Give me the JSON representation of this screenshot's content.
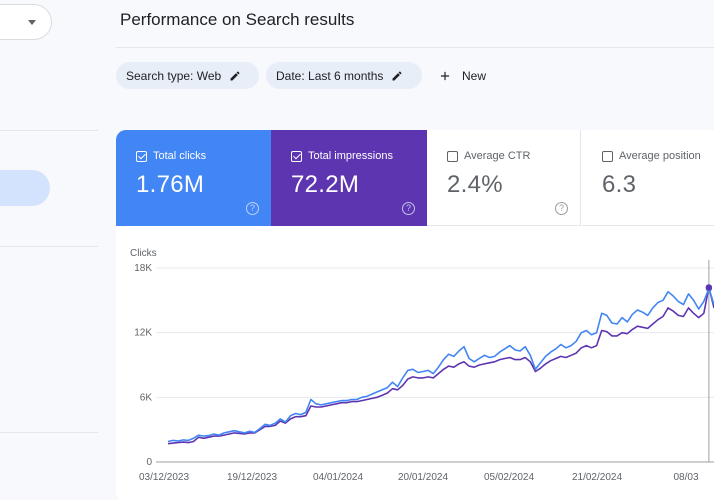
{
  "header": {
    "title": "Performance on Search results"
  },
  "filters": {
    "chips": [
      {
        "label": "Search type: Web"
      },
      {
        "label": "Date: Last 6 months"
      }
    ],
    "new_label": "New"
  },
  "metrics": [
    {
      "label": "Total clicks",
      "value": "1.76M",
      "checked": true,
      "color": "#4285f4"
    },
    {
      "label": "Total impressions",
      "value": "72.2M",
      "checked": true,
      "color": "#5e35b1"
    },
    {
      "label": "Average CTR",
      "value": "2.4%",
      "checked": false
    },
    {
      "label": "Average position",
      "value": "6.3",
      "checked": false
    }
  ],
  "icons": {
    "dropdown": "chevron-down-icon",
    "edit": "pencil-icon",
    "add": "plus-icon",
    "help": "help-circle-icon",
    "checkbox": "checkbox-icon"
  },
  "chart_data": {
    "type": "line",
    "ylabel": "Clicks",
    "ylim": [
      0,
      18000
    ],
    "yticks": [
      {
        "value": 0,
        "label": "0"
      },
      {
        "value": 6000,
        "label": "6K"
      },
      {
        "value": 12000,
        "label": "12K"
      },
      {
        "value": 18000,
        "label": "18K"
      }
    ],
    "xticks": [
      "03/12/2023",
      "19/12/2023",
      "04/01/2024",
      "20/01/2024",
      "05/02/2024",
      "21/02/2024",
      "08/03"
    ],
    "x_start": "2023-12-03",
    "series": [
      {
        "color": "#4285f4",
        "values": [
          1900,
          2000,
          1950,
          2050,
          2000,
          2200,
          2500,
          2400,
          2450,
          2600,
          2500,
          2700,
          2800,
          2900,
          2800,
          2700,
          2850,
          2750,
          3100,
          3500,
          3400,
          3600,
          4000,
          3700,
          4300,
          4500,
          4400,
          4600,
          5800,
          5400,
          5300,
          5400,
          5500,
          5600,
          5700,
          5700,
          5800,
          5800,
          6000,
          6100,
          6300,
          6500,
          6700,
          6900,
          7400,
          7000,
          7800,
          8500,
          8600,
          8300,
          8400,
          8500,
          8200,
          8800,
          9500,
          10000,
          9800,
          10300,
          10700,
          9600,
          9300,
          9600,
          9900,
          9700,
          9800,
          10200,
          10500,
          10800,
          10400,
          10300,
          10700,
          9900,
          8600,
          9200,
          9800,
          10200,
          10500,
          10900,
          10600,
          10800,
          11200,
          12000,
          12200,
          11800,
          12000,
          13800,
          13600,
          12900,
          12800,
          13400,
          13000,
          13700,
          14100,
          13900,
          13600,
          14300,
          14800,
          15000,
          15800,
          15400,
          14900,
          14600,
          15600,
          15000,
          14200,
          14900,
          16100,
          14600
        ],
        "name": ""
      },
      {
        "color": "#5e35b1",
        "values": [
          1700,
          1750,
          1800,
          1850,
          1800,
          1900,
          2300,
          2200,
          2300,
          2400,
          2400,
          2500,
          2600,
          2700,
          2650,
          2600,
          2700,
          2700,
          3000,
          3300,
          3300,
          3400,
          3800,
          3600,
          4000,
          4200,
          4200,
          4300,
          5200,
          5100,
          5100,
          5200,
          5300,
          5400,
          5500,
          5500,
          5600,
          5600,
          5700,
          5800,
          5900,
          6000,
          6200,
          6400,
          6800,
          6700,
          7100,
          7700,
          7900,
          7800,
          7800,
          7900,
          7800,
          8200,
          8600,
          8900,
          8800,
          9100,
          9300,
          8900,
          8800,
          9000,
          9100,
          9200,
          9300,
          9500,
          9600,
          9700,
          9500,
          9500,
          9700,
          9300,
          8400,
          8700,
          9100,
          9400,
          9600,
          9800,
          9700,
          9900,
          10100,
          10600,
          10800,
          10600,
          10800,
          12200,
          12100,
          11700,
          11700,
          12000,
          11900,
          12300,
          12600,
          12500,
          12400,
          12800,
          13200,
          13500,
          14300,
          14000,
          13600,
          13500,
          14300,
          13800,
          13400,
          13800,
          16200,
          14300
        ],
        "name": ""
      }
    ],
    "grid": true,
    "legend": "none"
  }
}
